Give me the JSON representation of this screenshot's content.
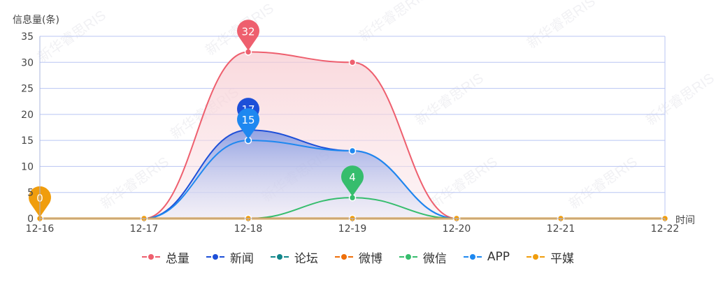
{
  "chart_data": {
    "type": "area",
    "ylabel": "信息量(条)",
    "xlabel": "时间",
    "ylim": [
      0,
      35
    ],
    "yticks": [
      0,
      5,
      10,
      15,
      20,
      25,
      30,
      35
    ],
    "categories": [
      "12-16",
      "12-17",
      "12-18",
      "12-19",
      "12-20",
      "12-21",
      "12-22"
    ],
    "series": [
      {
        "name": "总量",
        "color": "#ee5f6e",
        "values": [
          0,
          0,
          32,
          30,
          0,
          0,
          0
        ],
        "fill": true,
        "pin": {
          "index": 2,
          "label": "32"
        }
      },
      {
        "name": "新闻",
        "color": "#1d4fd8",
        "values": [
          0,
          0,
          17,
          13,
          0,
          0,
          0
        ],
        "fill": true,
        "pin": {
          "index": 2,
          "label": "17"
        }
      },
      {
        "name": "论坛",
        "color": "#11868a",
        "values": [
          0,
          0,
          0,
          0,
          0,
          0,
          0
        ]
      },
      {
        "name": "微博",
        "color": "#ee6f0a",
        "values": [
          0,
          0,
          0,
          0,
          0,
          0,
          0
        ]
      },
      {
        "name": "微信",
        "color": "#36bd6d",
        "values": [
          0,
          0,
          0,
          4,
          0,
          0,
          0
        ],
        "pin": {
          "index": 3,
          "label": "4"
        }
      },
      {
        "name": "APP",
        "color": "#1e88f0",
        "values": [
          0,
          0,
          15,
          13,
          0,
          0,
          0
        ],
        "pin": {
          "index": 2,
          "label": "15"
        }
      },
      {
        "name": "平媒",
        "color": "#f09d0d",
        "values": [
          0,
          0,
          0,
          0,
          0,
          0,
          0
        ],
        "pin": {
          "index": 0,
          "label": "0"
        }
      }
    ],
    "legend_position": "bottom"
  },
  "watermark": "新华睿思RIS"
}
